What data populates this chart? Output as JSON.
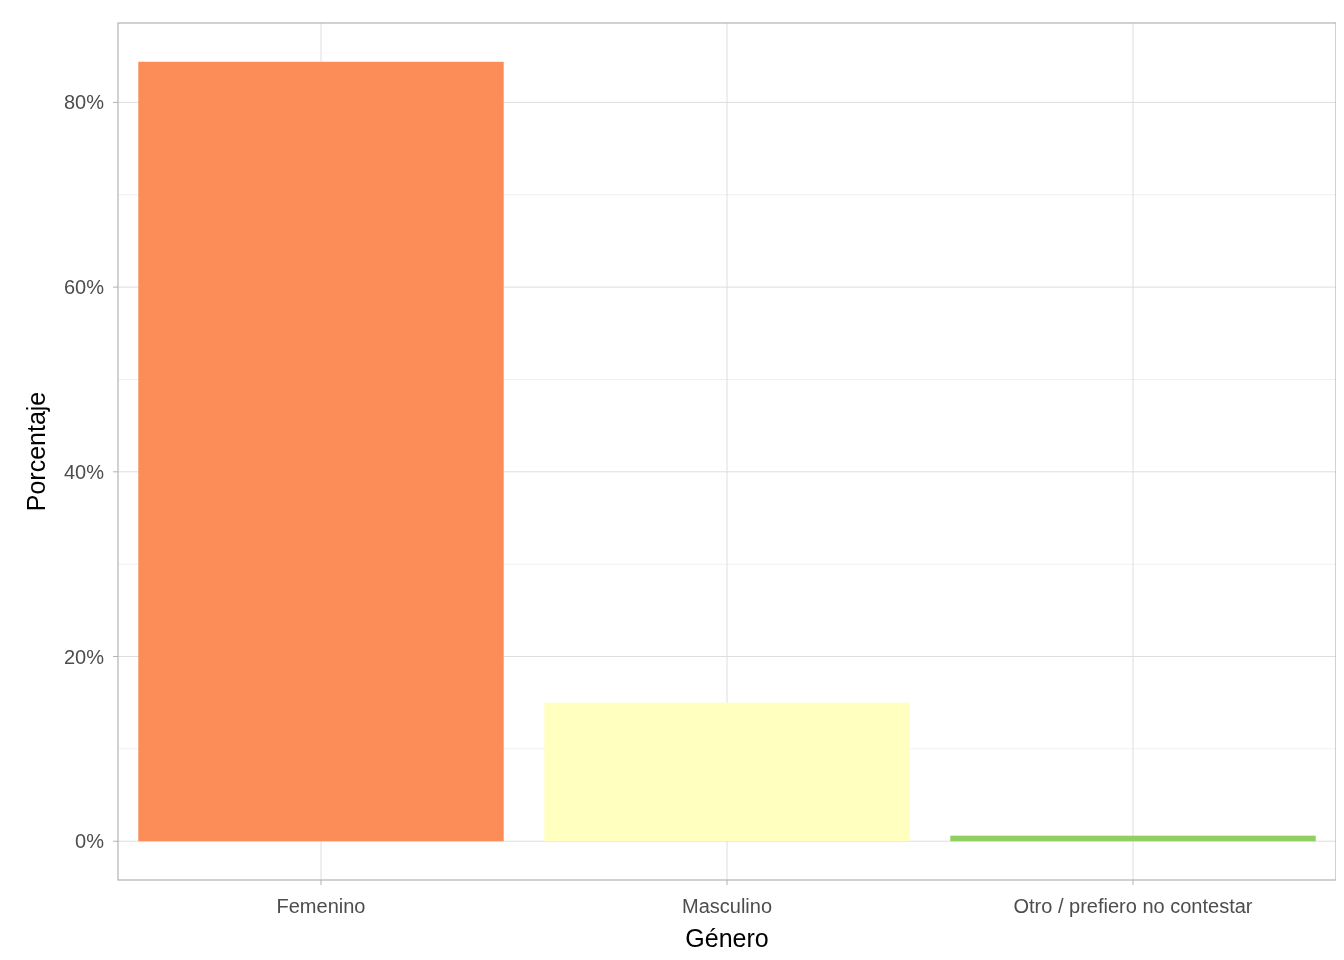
{
  "chart_data": {
    "type": "bar",
    "xlabel": "Género",
    "ylabel": "Porcentaje",
    "categories": [
      "Femenino",
      "Masculino",
      "Otro / prefiero no contestar"
    ],
    "values": [
      84.4,
      15.0,
      0.6
    ],
    "colors": [
      "#fc8d59",
      "#ffffbf",
      "#91cf60"
    ],
    "ylim": [
      -4.2,
      88.6
    ],
    "yticks": [
      {
        "value": 0,
        "label": "0%"
      },
      {
        "value": 10,
        "label": null
      },
      {
        "value": 20,
        "label": "20%"
      },
      {
        "value": 30,
        "label": null
      },
      {
        "value": 40,
        "label": "40%"
      },
      {
        "value": 50,
        "label": null
      },
      {
        "value": 60,
        "label": "60%"
      },
      {
        "value": 70,
        "label": null
      },
      {
        "value": 80,
        "label": "80%"
      }
    ],
    "grid": true
  }
}
